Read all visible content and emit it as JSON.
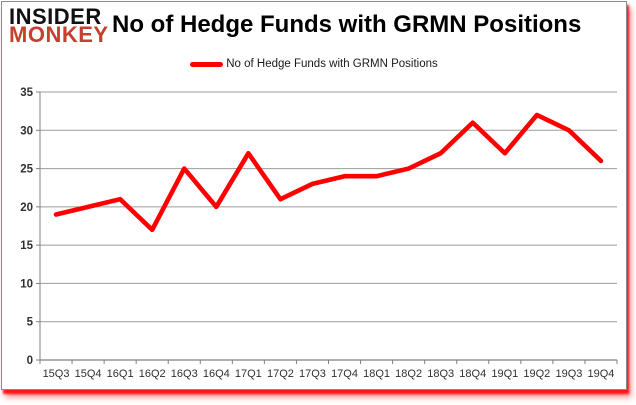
{
  "brand": {
    "line1": "INSIDER",
    "line2": "MONKEY",
    "line2_color": "#c6402e"
  },
  "header": {
    "title": "No of Hedge Funds with GRMN Positions"
  },
  "legend": {
    "label": "No of Hedge Funds with GRMN Positions",
    "marker_color": "#fe0000"
  },
  "chart_data": {
    "type": "line",
    "title": "No of Hedge Funds with GRMN Positions",
    "categories": [
      "15Q3",
      "15Q4",
      "16Q1",
      "16Q2",
      "16Q3",
      "16Q4",
      "17Q1",
      "17Q2",
      "17Q3",
      "17Q4",
      "18Q1",
      "18Q2",
      "18Q3",
      "18Q4",
      "19Q1",
      "19Q2",
      "19Q3",
      "19Q4"
    ],
    "series": [
      {
        "name": "No of Hedge Funds with GRMN Positions",
        "color": "#fe0000",
        "values": [
          19,
          20,
          21,
          17,
          25,
          20,
          27,
          21,
          23,
          24,
          24,
          25,
          27,
          31,
          27,
          32,
          30,
          26
        ]
      }
    ],
    "xlabel": "",
    "ylabel": "",
    "ylim": [
      0,
      35
    ],
    "yticks": [
      0,
      5,
      10,
      15,
      20,
      25,
      30,
      35
    ],
    "grid": true,
    "legend_position": "top-center"
  },
  "colors": {
    "line": "#fe0000",
    "gridline": "#9b9b9b",
    "axis": "#808080",
    "tick_label": "#303030",
    "box_border": "#8a8a8a",
    "shadow": "#ff0000"
  }
}
